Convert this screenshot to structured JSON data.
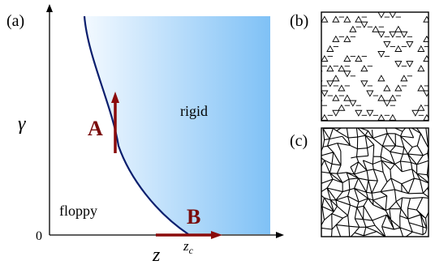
{
  "panels": {
    "a": {
      "label": "(a)"
    },
    "b": {
      "label": "(b)"
    },
    "c": {
      "label": "(c)"
    }
  },
  "axes": {
    "y_label": "γ",
    "x_label": "z",
    "origin_label": "0"
  },
  "regions": {
    "rigid": "rigid",
    "floppy": "floppy"
  },
  "markers": {
    "A": {
      "label": "A",
      "direction": "up"
    },
    "B": {
      "label": "B",
      "direction": "right"
    }
  },
  "critical": {
    "label_base": "z",
    "label_sub": "c"
  },
  "colors": {
    "curve": "#0b1f6e",
    "arrow": "#8b0b0b",
    "rigid_light": "#f3f9ff",
    "rigid_dark": "#7fc1f6"
  }
}
